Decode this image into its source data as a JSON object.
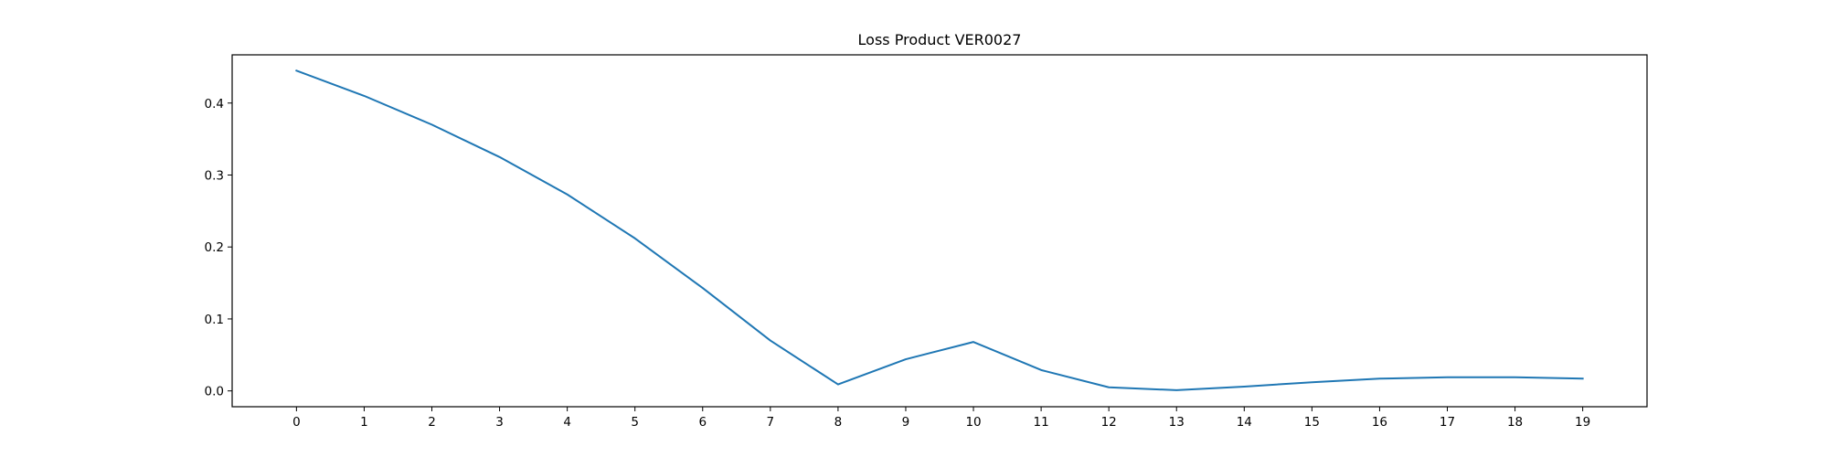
{
  "chart_data": {
    "type": "line",
    "title": "Loss Product VER0027",
    "xlabel": "",
    "ylabel": "",
    "x": [
      0,
      1,
      2,
      3,
      4,
      5,
      6,
      7,
      8,
      9,
      10,
      11,
      12,
      13,
      14,
      15,
      16,
      17,
      18,
      19
    ],
    "xticks": [
      "0",
      "1",
      "2",
      "3",
      "4",
      "5",
      "6",
      "7",
      "8",
      "9",
      "10",
      "11",
      "12",
      "13",
      "14",
      "15",
      "16",
      "17",
      "18",
      "19"
    ],
    "xlim": [
      -0.95,
      19.95
    ],
    "ylim": [
      -0.022,
      0.467
    ],
    "yticks": [
      "0.0",
      "0.1",
      "0.2",
      "0.3",
      "0.4"
    ],
    "ytick_values": [
      0.0,
      0.1,
      0.2,
      0.3,
      0.4
    ],
    "grid": false,
    "series": [
      {
        "color": "#1f77b4",
        "values": [
          0.445,
          0.41,
          0.37,
          0.325,
          0.273,
          0.212,
          0.143,
          0.07,
          0.009,
          0.044,
          0.068,
          0.029,
          0.005,
          0.001,
          0.006,
          0.012,
          0.017,
          0.019,
          0.019,
          0.017
        ]
      }
    ]
  }
}
